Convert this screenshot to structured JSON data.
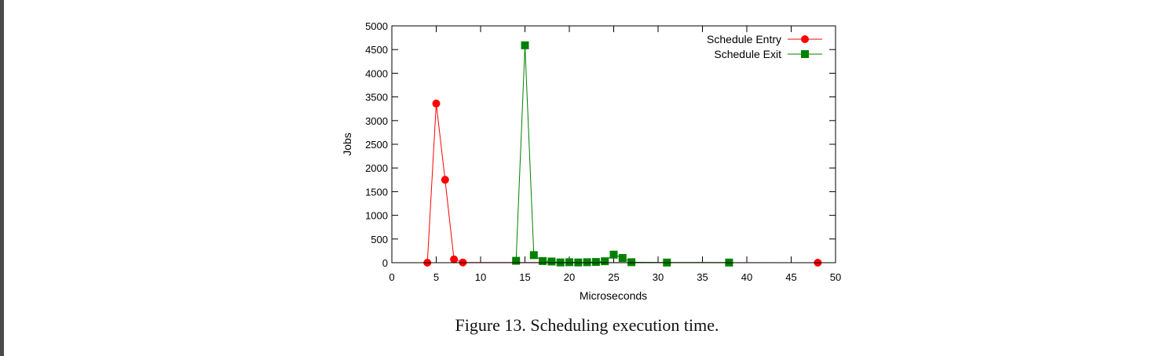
{
  "caption": "Figure 13. Scheduling execution time.",
  "colors": {
    "entry": "#ff0000",
    "exit": "#008000",
    "frame": "#000000"
  },
  "chart_data": {
    "type": "line",
    "xlabel": "Microseconds",
    "ylabel": "Jobs",
    "xlim": [
      0,
      50
    ],
    "ylim": [
      0,
      5000
    ],
    "xticks": [
      0,
      5,
      10,
      15,
      20,
      25,
      30,
      35,
      40,
      45,
      50
    ],
    "yticks": [
      0,
      500,
      1000,
      1500,
      2000,
      2500,
      3000,
      3500,
      4000,
      4500,
      5000
    ],
    "grid": false,
    "legend": "top-right",
    "series": [
      {
        "name": "Schedule Entry",
        "marker": "circle",
        "color": "#ff0000",
        "x": [
          4,
          5,
          6,
          7,
          8,
          48
        ],
        "y": [
          0,
          3360,
          1750,
          70,
          5,
          0
        ]
      },
      {
        "name": "Schedule Exit",
        "marker": "square",
        "color": "#008000",
        "x": [
          14,
          15,
          16,
          17,
          18,
          19,
          20,
          21,
          22,
          23,
          24,
          25,
          26,
          27,
          31,
          38
        ],
        "y": [
          40,
          4590,
          160,
          35,
          25,
          5,
          10,
          5,
          10,
          15,
          30,
          170,
          100,
          10,
          3,
          3
        ]
      }
    ]
  }
}
